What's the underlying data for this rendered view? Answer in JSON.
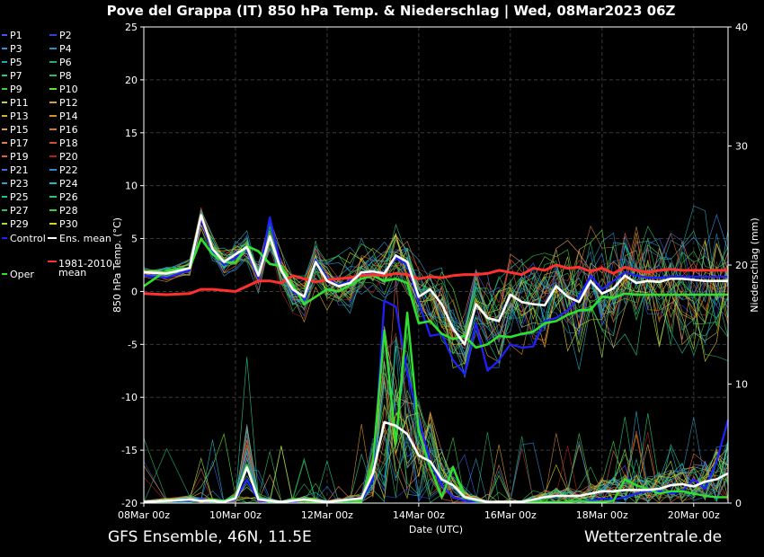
{
  "footer": {
    "left": "GFS Ensemble, 46N, 11.5E",
    "right": "Wetterzentrale.de"
  },
  "chart_data": {
    "type": "line",
    "title": "Pove del Grappa  (IT)  850 hPa Temp. & Niederschlag | Wed, 08Mar2023 06Z",
    "xlabel": "Date (UTC)",
    "ylabel_left": "850 hPa Temp. (°C)",
    "ylabel_right": "Niederschlag (mm)",
    "ylim_left": [
      -20,
      25
    ],
    "ylim_right": [
      0,
      40
    ],
    "yticks_left": [
      -20,
      -15,
      -10,
      -5,
      0,
      5,
      10,
      15,
      20,
      25
    ],
    "yticks_right": [
      0,
      10,
      20,
      30,
      40
    ],
    "x_range_hours": [
      0,
      306
    ],
    "xticks": [
      {
        "hour": 0,
        "label": "08Mar 00z"
      },
      {
        "hour": 48,
        "label": "10Mar 00z"
      },
      {
        "hour": 96,
        "label": "12Mar 00z"
      },
      {
        "hour": 144,
        "label": "14Mar 00z"
      },
      {
        "hour": 192,
        "label": "16Mar 00z"
      },
      {
        "hour": 240,
        "label": "18Mar 00z"
      },
      {
        "hour": 288,
        "label": "20Mar 00z"
      }
    ],
    "grid": true,
    "legend_position": "left",
    "legend": [
      {
        "label": "P1",
        "color": "#3b5ee8"
      },
      {
        "label": "P2",
        "color": "#2848d8"
      },
      {
        "label": "P3",
        "color": "#3a8ee8"
      },
      {
        "label": "P4",
        "color": "#2a90c0"
      },
      {
        "label": "P5",
        "color": "#20a8b8"
      },
      {
        "label": "P6",
        "color": "#20b070"
      },
      {
        "label": "P7",
        "color": "#28c890"
      },
      {
        "label": "P8",
        "color": "#30b860"
      },
      {
        "label": "P9",
        "color": "#40d040"
      },
      {
        "label": "P10",
        "color": "#60e030"
      },
      {
        "label": "P11",
        "color": "#c8d040"
      },
      {
        "label": "P12",
        "color": "#d0a040"
      },
      {
        "label": "P13",
        "color": "#d8b030"
      },
      {
        "label": "P14",
        "color": "#d89020"
      },
      {
        "label": "P15",
        "color": "#e0a060"
      },
      {
        "label": "P16",
        "color": "#c88040"
      },
      {
        "label": "P17",
        "color": "#e08050"
      },
      {
        "label": "P18",
        "color": "#d05030"
      },
      {
        "label": "P19",
        "color": "#e06040"
      },
      {
        "label": "P20",
        "color": "#b02020"
      },
      {
        "label": "P21",
        "color": "#4070e0"
      },
      {
        "label": "P22",
        "color": "#3088d0"
      },
      {
        "label": "P23",
        "color": "#30a0d0"
      },
      {
        "label": "P24",
        "color": "#20b8c8"
      },
      {
        "label": "P25",
        "color": "#20c0a0"
      },
      {
        "label": "P26",
        "color": "#28c878"
      },
      {
        "label": "P27",
        "color": "#30c060"
      },
      {
        "label": "P28",
        "color": "#40c840"
      },
      {
        "label": "P29",
        "color": "#a0e040"
      },
      {
        "label": "P30",
        "color": "#e0d020"
      },
      {
        "label": "Control",
        "color": "#2020ff"
      },
      {
        "label": "Ens. mean",
        "color": "#ffffff"
      },
      {
        "label": "Oper",
        "color": "#30e030"
      },
      {
        "label": "1981-2010 mean",
        "color": "#ff3030"
      }
    ],
    "series": [
      {
        "name": "Ens. mean",
        "axis": "left",
        "color": "#ffffff",
        "x": [
          0,
          12,
          24,
          30,
          36,
          42,
          48,
          54,
          60,
          66,
          72,
          78,
          84,
          90,
          96,
          102,
          108,
          114,
          120,
          126,
          132,
          138,
          144,
          150,
          156,
          162,
          168,
          174,
          180,
          186,
          192,
          198,
          204,
          210,
          216,
          222,
          228,
          234,
          240,
          246,
          252,
          258,
          264,
          270,
          276,
          282,
          288,
          294,
          300,
          306
        ],
        "y": [
          1.8,
          1.7,
          2.2,
          7.2,
          4.0,
          2.8,
          3.5,
          4.2,
          1.5,
          5.2,
          2.0,
          0.2,
          -0.5,
          2.8,
          1.0,
          0.5,
          0.8,
          1.8,
          1.9,
          1.7,
          3.4,
          2.8,
          -0.5,
          0.2,
          -1.2,
          -3.5,
          -5.0,
          -1.2,
          -2.5,
          -2.8,
          -0.3,
          -1.0,
          -1.2,
          -1.3,
          0.5,
          -0.5,
          -1.0,
          1.0,
          -0.2,
          0.3,
          1.5,
          0.8,
          1.0,
          0.9,
          1.2,
          1.2,
          1.1,
          1.0,
          1.0,
          1.0
        ]
      },
      {
        "name": "Oper",
        "axis": "left",
        "color": "#30e030",
        "x": [
          0,
          12,
          24,
          30,
          36,
          42,
          48,
          54,
          60,
          66,
          72,
          78,
          84,
          90,
          96,
          102,
          108,
          114,
          120,
          126,
          132,
          138,
          144,
          150,
          156,
          162,
          168,
          174,
          180,
          186,
          192,
          198,
          204,
          210,
          216,
          222,
          228,
          234,
          240,
          246,
          252,
          258,
          264,
          270,
          276,
          282,
          288,
          294,
          300,
          306
        ],
        "y": [
          0.5,
          2.0,
          2.2,
          5.0,
          3.5,
          2.8,
          2.7,
          4.3,
          3.8,
          2.6,
          2.4,
          0.6,
          -1.2,
          -0.5,
          0.2,
          0.0,
          0.6,
          1.2,
          1.5,
          1.0,
          1.2,
          0.8,
          -3.0,
          -2.8,
          -4.0,
          -4.5,
          -4.2,
          -5.3,
          -5.0,
          -4.2,
          -4.3,
          -4.0,
          -3.8,
          -3.0,
          -2.8,
          -2.2,
          -1.8,
          -1.7,
          -0.5,
          -0.6,
          -0.2,
          -0.3,
          -0.3,
          -0.3,
          -0.3,
          -0.3,
          -0.3,
          -0.3,
          -0.3,
          -0.3
        ]
      },
      {
        "name": "Control",
        "axis": "left",
        "color": "#2020ff",
        "x": [
          0,
          12,
          24,
          30,
          36,
          42,
          48,
          54,
          60,
          66,
          72,
          78,
          84,
          90,
          96,
          102,
          108,
          114,
          120,
          126,
          132,
          138,
          144,
          150,
          156,
          162,
          168,
          174,
          180,
          186,
          192,
          198,
          204,
          210,
          216,
          222,
          228,
          234,
          240,
          246,
          252,
          258,
          264,
          270,
          276,
          282,
          288,
          294,
          300,
          306
        ],
        "y": [
          1.5,
          1.3,
          2.0,
          6.8,
          3.8,
          2.5,
          3.2,
          4.0,
          1.2,
          7.0,
          2.3,
          0.0,
          -0.8,
          3.0,
          1.2,
          0.6,
          1.0,
          1.8,
          1.7,
          1.8,
          3.2,
          2.5,
          -1.0,
          -4.2,
          -4.0,
          -6.5,
          -7.8,
          -3.0,
          -7.5,
          -6.5,
          -5.0,
          -5.3,
          -5.2,
          -2.8,
          -2.5,
          -1.8,
          -0.5,
          1.5,
          0.2,
          1.0,
          1.8,
          1.5,
          1.3,
          1.3,
          1.4,
          1.4,
          1.4,
          1.4,
          1.4,
          1.4
        ]
      },
      {
        "name": "1981-2010 mean",
        "axis": "left",
        "color": "#ff3030",
        "x": [
          0,
          12,
          24,
          30,
          36,
          42,
          48,
          54,
          60,
          66,
          72,
          78,
          84,
          90,
          96,
          102,
          108,
          114,
          120,
          126,
          132,
          138,
          144,
          150,
          156,
          162,
          168,
          174,
          180,
          186,
          192,
          198,
          204,
          210,
          216,
          222,
          228,
          234,
          240,
          246,
          252,
          258,
          264,
          270,
          276,
          282,
          288,
          294,
          300,
          306
        ],
        "y": [
          -0.2,
          -0.3,
          -0.2,
          0.2,
          0.2,
          0.1,
          0.0,
          0.5,
          1.0,
          1.0,
          0.8,
          1.5,
          1.2,
          0.9,
          1.1,
          1.2,
          1.3,
          1.5,
          1.6,
          1.5,
          1.7,
          1.6,
          1.2,
          1.4,
          1.3,
          1.5,
          1.6,
          1.6,
          1.7,
          2.0,
          1.8,
          1.6,
          2.2,
          2.0,
          2.5,
          2.2,
          2.3,
          1.9,
          2.2,
          1.7,
          2.3,
          2.0,
          1.8,
          2.0,
          2.1,
          2.0,
          2.0,
          2.0,
          2.0,
          2.0
        ]
      },
      {
        "name": "Ens. mean precip",
        "axis": "right",
        "color": "#ffffff",
        "x": [
          0,
          12,
          24,
          30,
          36,
          42,
          48,
          54,
          60,
          66,
          72,
          78,
          84,
          90,
          96,
          102,
          108,
          114,
          120,
          126,
          132,
          138,
          144,
          150,
          156,
          162,
          168,
          174,
          180,
          186,
          192,
          198,
          204,
          210,
          216,
          222,
          228,
          234,
          240,
          246,
          252,
          258,
          264,
          270,
          276,
          282,
          288,
          294,
          300,
          306
        ],
        "y": [
          0.1,
          0.2,
          0.3,
          0.2,
          0.2,
          0.1,
          0.4,
          3.0,
          0.3,
          0.2,
          0.1,
          0.2,
          0.3,
          0.2,
          0.1,
          0.2,
          0.3,
          0.4,
          2.5,
          6.8,
          6.5,
          5.8,
          4.0,
          3.5,
          2.0,
          1.5,
          0.5,
          0.3,
          0.1,
          0.1,
          0.1,
          0.1,
          0.3,
          0.5,
          0.6,
          0.6,
          0.6,
          0.8,
          1.0,
          1.0,
          1.1,
          1.1,
          1.1,
          1.2,
          1.5,
          1.6,
          1.4,
          1.8,
          2.0,
          2.5
        ]
      },
      {
        "name": "Oper precip",
        "axis": "right",
        "color": "#30e030",
        "x": [
          0,
          12,
          24,
          30,
          36,
          42,
          48,
          54,
          60,
          66,
          72,
          78,
          84,
          90,
          96,
          102,
          108,
          114,
          120,
          126,
          132,
          138,
          144,
          150,
          156,
          162,
          168,
          174,
          180,
          186,
          192,
          198,
          204,
          210,
          216,
          222,
          228,
          234,
          240,
          246,
          252,
          258,
          264,
          270,
          276,
          282,
          288,
          294,
          300,
          306
        ],
        "y": [
          0.1,
          0.2,
          0.3,
          0.2,
          0.3,
          0.2,
          0.5,
          3.2,
          0.4,
          0.1,
          0.1,
          0.2,
          0.2,
          0.1,
          0.1,
          0.1,
          0.2,
          0.2,
          3.5,
          14.5,
          5.0,
          16.0,
          6.0,
          3.0,
          0.5,
          3.0,
          0.5,
          0.2,
          0.1,
          0.1,
          0.1,
          0.1,
          0.1,
          0.1,
          0.1,
          0.1,
          0.2,
          0.1,
          0.1,
          0.2,
          2.0,
          1.5,
          1.2,
          0.8,
          1.0,
          1.0,
          0.8,
          0.6,
          0.5,
          0.5
        ]
      },
      {
        "name": "Control precip",
        "axis": "right",
        "color": "#2020ff",
        "x": [
          0,
          12,
          24,
          30,
          36,
          42,
          48,
          54,
          60,
          66,
          72,
          78,
          84,
          90,
          96,
          102,
          108,
          114,
          120,
          126,
          132,
          138,
          144,
          150,
          156,
          162,
          168,
          174,
          180,
          186,
          192,
          198,
          204,
          210,
          216,
          222,
          228,
          234,
          240,
          246,
          252,
          258,
          264,
          270,
          276,
          282,
          288,
          294,
          300,
          306
        ],
        "y": [
          0.1,
          0.2,
          0.2,
          0.3,
          0.2,
          0.1,
          0.3,
          2.0,
          0.2,
          0.1,
          0.1,
          0.1,
          0.2,
          0.1,
          0.1,
          0.1,
          0.2,
          0.2,
          2.0,
          17.0,
          16.5,
          11.0,
          7.0,
          3.5,
          1.5,
          0.5,
          0.2,
          0.1,
          0.1,
          0.1,
          0.1,
          0.1,
          0.1,
          0.1,
          0.1,
          0.1,
          0.2,
          0.2,
          0.4,
          0.3,
          0.5,
          0.8,
          1.0,
          1.0,
          0.8,
          1.0,
          2.0,
          1.2,
          3.5,
          7.0
        ]
      }
    ]
  }
}
